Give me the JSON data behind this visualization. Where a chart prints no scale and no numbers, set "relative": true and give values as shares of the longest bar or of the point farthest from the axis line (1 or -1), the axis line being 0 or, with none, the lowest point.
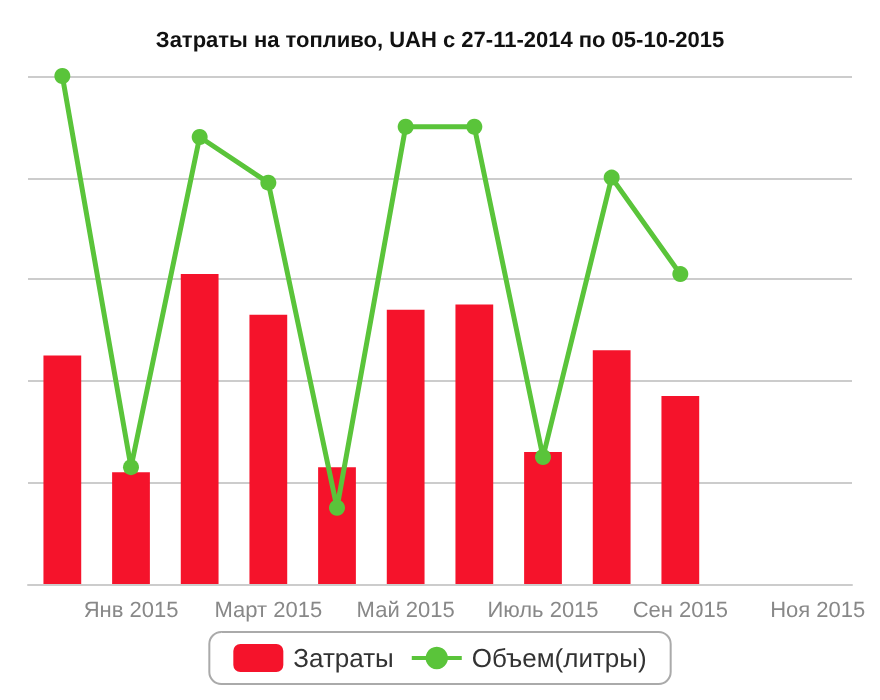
{
  "chart_data": {
    "type": "bar",
    "title": "Затраты на топливо, UAH с 27-11-2014 по 05-10-2015",
    "relative": true,
    "categories": [
      null,
      "Янв 2015",
      null,
      "Март 2015",
      null,
      "Май 2015",
      null,
      "Июль 2015",
      null,
      "Сен 2015",
      null,
      "Ноя 2015"
    ],
    "series": [
      {
        "name": "Затраты",
        "color": "#f5132b",
        "values": [
          0.45,
          0.22,
          0.61,
          0.53,
          0.23,
          0.54,
          0.55,
          0.26,
          0.46,
          0.37,
          null,
          null
        ]
      },
      {
        "name": "Объем(литры)",
        "type": "line",
        "color": "#5ac43a",
        "values": [
          1,
          0.23,
          0.88,
          0.79,
          0.15,
          0.9,
          0.9,
          0.25,
          0.8,
          0.61,
          null,
          null
        ]
      }
    ],
    "grid": "y",
    "legend": "bottom",
    "marker": "circle"
  }
}
